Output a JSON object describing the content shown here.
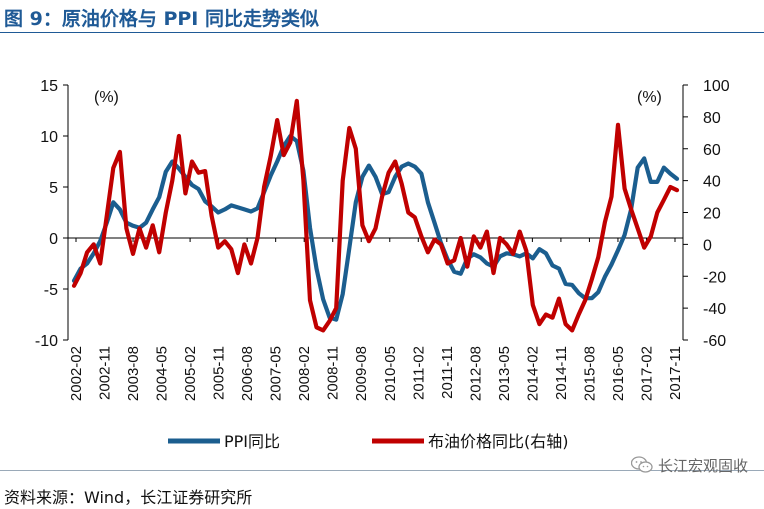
{
  "header": {
    "title": "图 9：原油价格与 PPI 同比走势类似"
  },
  "footer": {
    "source": "资料来源：Wind，长江证券研究所"
  },
  "watermark": {
    "text": "长江宏观固收"
  },
  "chart_data": {
    "type": "line",
    "left_unit": "(%)",
    "right_unit": "(%)",
    "x_labels": [
      "2002-02",
      "2002-11",
      "2003-08",
      "2004-05",
      "2005-02",
      "2005-11",
      "2006-08",
      "2007-05",
      "2008-02",
      "2008-11",
      "2009-08",
      "2010-05",
      "2011-02",
      "2011-11",
      "2012-08",
      "2013-05",
      "2014-02",
      "2014-11",
      "2015-08",
      "2016-05",
      "2017-02",
      "2017-11"
    ],
    "y_left": {
      "min": -10,
      "max": 15,
      "ticks": [
        -10,
        -5,
        0,
        5,
        10,
        15
      ]
    },
    "y_right": {
      "min": -60,
      "max": 100,
      "ticks": [
        -60,
        -40,
        -20,
        0,
        20,
        40,
        60,
        80,
        100
      ]
    },
    "grid": false,
    "legend_position": "bottom",
    "series": [
      {
        "name": "PPI同比",
        "axis": "left",
        "color": "#1b5e8f",
        "points": [
          [
            0,
            -4.2
          ],
          [
            1,
            -3.0
          ],
          [
            2,
            -2.5
          ],
          [
            3,
            -1.5
          ],
          [
            4,
            -0.3
          ],
          [
            5,
            1.5
          ],
          [
            6,
            3.5
          ],
          [
            7,
            2.8
          ],
          [
            8,
            1.5
          ],
          [
            9,
            1.2
          ],
          [
            10,
            1.0
          ],
          [
            11,
            1.5
          ],
          [
            12,
            2.8
          ],
          [
            13,
            4.0
          ],
          [
            14,
            6.5
          ],
          [
            15,
            7.5
          ],
          [
            16,
            6.8
          ],
          [
            17,
            6.0
          ],
          [
            18,
            5.2
          ],
          [
            19,
            4.8
          ],
          [
            20,
            3.6
          ],
          [
            21,
            3.1
          ],
          [
            22,
            2.5
          ],
          [
            23,
            2.8
          ],
          [
            24,
            3.2
          ],
          [
            25,
            3.0
          ],
          [
            26,
            2.8
          ],
          [
            27,
            2.6
          ],
          [
            28,
            2.9
          ],
          [
            29,
            4.5
          ],
          [
            30,
            6.1
          ],
          [
            31,
            7.5
          ],
          [
            32,
            9.0
          ],
          [
            33,
            10.0
          ],
          [
            34,
            9.5
          ],
          [
            35,
            6.6
          ],
          [
            36,
            1.0
          ],
          [
            37,
            -3.0
          ],
          [
            38,
            -6.0
          ],
          [
            39,
            -7.8
          ],
          [
            40,
            -8.0
          ],
          [
            41,
            -5.5
          ],
          [
            42,
            -1.0
          ],
          [
            43,
            3.5
          ],
          [
            44,
            6.0
          ],
          [
            45,
            7.1
          ],
          [
            46,
            6.0
          ],
          [
            47,
            4.3
          ],
          [
            48,
            4.5
          ],
          [
            49,
            6.0
          ],
          [
            50,
            7.0
          ],
          [
            51,
            7.3
          ],
          [
            52,
            7.0
          ],
          [
            53,
            6.3
          ],
          [
            54,
            3.5
          ],
          [
            55,
            1.5
          ],
          [
            56,
            -0.5
          ],
          [
            57,
            -2.1
          ],
          [
            58,
            -3.3
          ],
          [
            59,
            -3.5
          ],
          [
            60,
            -2.0
          ],
          [
            61,
            -1.6
          ],
          [
            62,
            -1.9
          ],
          [
            63,
            -2.5
          ],
          [
            64,
            -2.8
          ],
          [
            65,
            -1.8
          ],
          [
            66,
            -1.5
          ],
          [
            67,
            -1.6
          ],
          [
            68,
            -1.8
          ],
          [
            69,
            -1.5
          ],
          [
            70,
            -2.0
          ],
          [
            71,
            -1.1
          ],
          [
            72,
            -1.5
          ],
          [
            73,
            -2.7
          ],
          [
            74,
            -3.0
          ],
          [
            75,
            -4.5
          ],
          [
            76,
            -4.6
          ],
          [
            77,
            -5.4
          ],
          [
            78,
            -5.9
          ],
          [
            79,
            -5.9
          ],
          [
            80,
            -5.3
          ],
          [
            81,
            -3.8
          ],
          [
            82,
            -2.6
          ],
          [
            83,
            -1.2
          ],
          [
            84,
            0.3
          ],
          [
            85,
            2.8
          ],
          [
            86,
            6.9
          ],
          [
            87,
            7.8
          ],
          [
            88,
            5.5
          ],
          [
            89,
            5.5
          ],
          [
            90,
            6.9
          ],
          [
            91,
            6.3
          ],
          [
            92,
            5.8
          ]
        ]
      },
      {
        "name": "布油价格同比(右轴)",
        "axis": "right",
        "color": "#c00000",
        "points": [
          [
            0,
            -26
          ],
          [
            1,
            -18
          ],
          [
            2,
            -5
          ],
          [
            3,
            0
          ],
          [
            4,
            -12
          ],
          [
            5,
            18
          ],
          [
            6,
            48
          ],
          [
            7,
            58
          ],
          [
            8,
            10
          ],
          [
            9,
            -6
          ],
          [
            10,
            10
          ],
          [
            11,
            -2
          ],
          [
            12,
            12
          ],
          [
            13,
            -5
          ],
          [
            14,
            20
          ],
          [
            15,
            40
          ],
          [
            16,
            68
          ],
          [
            17,
            32
          ],
          [
            18,
            52
          ],
          [
            19,
            45
          ],
          [
            20,
            46
          ],
          [
            21,
            18
          ],
          [
            22,
            -2
          ],
          [
            23,
            2
          ],
          [
            24,
            -3
          ],
          [
            25,
            -18
          ],
          [
            26,
            0
          ],
          [
            27,
            -12
          ],
          [
            28,
            4
          ],
          [
            29,
            36
          ],
          [
            30,
            55
          ],
          [
            31,
            78
          ],
          [
            32,
            56
          ],
          [
            33,
            64
          ],
          [
            34,
            90
          ],
          [
            35,
            40
          ],
          [
            36,
            -35
          ],
          [
            37,
            -52
          ],
          [
            38,
            -54
          ],
          [
            39,
            -48
          ],
          [
            40,
            -40
          ],
          [
            41,
            40
          ],
          [
            42,
            73
          ],
          [
            43,
            60
          ],
          [
            44,
            12
          ],
          [
            45,
            2
          ],
          [
            46,
            10
          ],
          [
            47,
            30
          ],
          [
            48,
            45
          ],
          [
            49,
            52
          ],
          [
            50,
            38
          ],
          [
            51,
            20
          ],
          [
            52,
            17
          ],
          [
            53,
            5
          ],
          [
            54,
            -5
          ],
          [
            55,
            3
          ],
          [
            56,
            0
          ],
          [
            57,
            -12
          ],
          [
            58,
            -10
          ],
          [
            59,
            4
          ],
          [
            60,
            -14
          ],
          [
            61,
            5
          ],
          [
            62,
            -2
          ],
          [
            63,
            8
          ],
          [
            64,
            -18
          ],
          [
            65,
            4
          ],
          [
            66,
            0
          ],
          [
            67,
            -6
          ],
          [
            68,
            8
          ],
          [
            69,
            -4
          ],
          [
            70,
            -38
          ],
          [
            71,
            -50
          ],
          [
            72,
            -44
          ],
          [
            73,
            -46
          ],
          [
            74,
            -34
          ],
          [
            75,
            -50
          ],
          [
            76,
            -54
          ],
          [
            77,
            -44
          ],
          [
            78,
            -35
          ],
          [
            79,
            -22
          ],
          [
            80,
            -8
          ],
          [
            81,
            14
          ],
          [
            82,
            30
          ],
          [
            83,
            75
          ],
          [
            84,
            35
          ],
          [
            85,
            22
          ],
          [
            86,
            10
          ],
          [
            87,
            -2
          ],
          [
            88,
            5
          ],
          [
            89,
            20
          ],
          [
            90,
            28
          ],
          [
            91,
            36
          ],
          [
            92,
            34
          ]
        ]
      }
    ]
  }
}
